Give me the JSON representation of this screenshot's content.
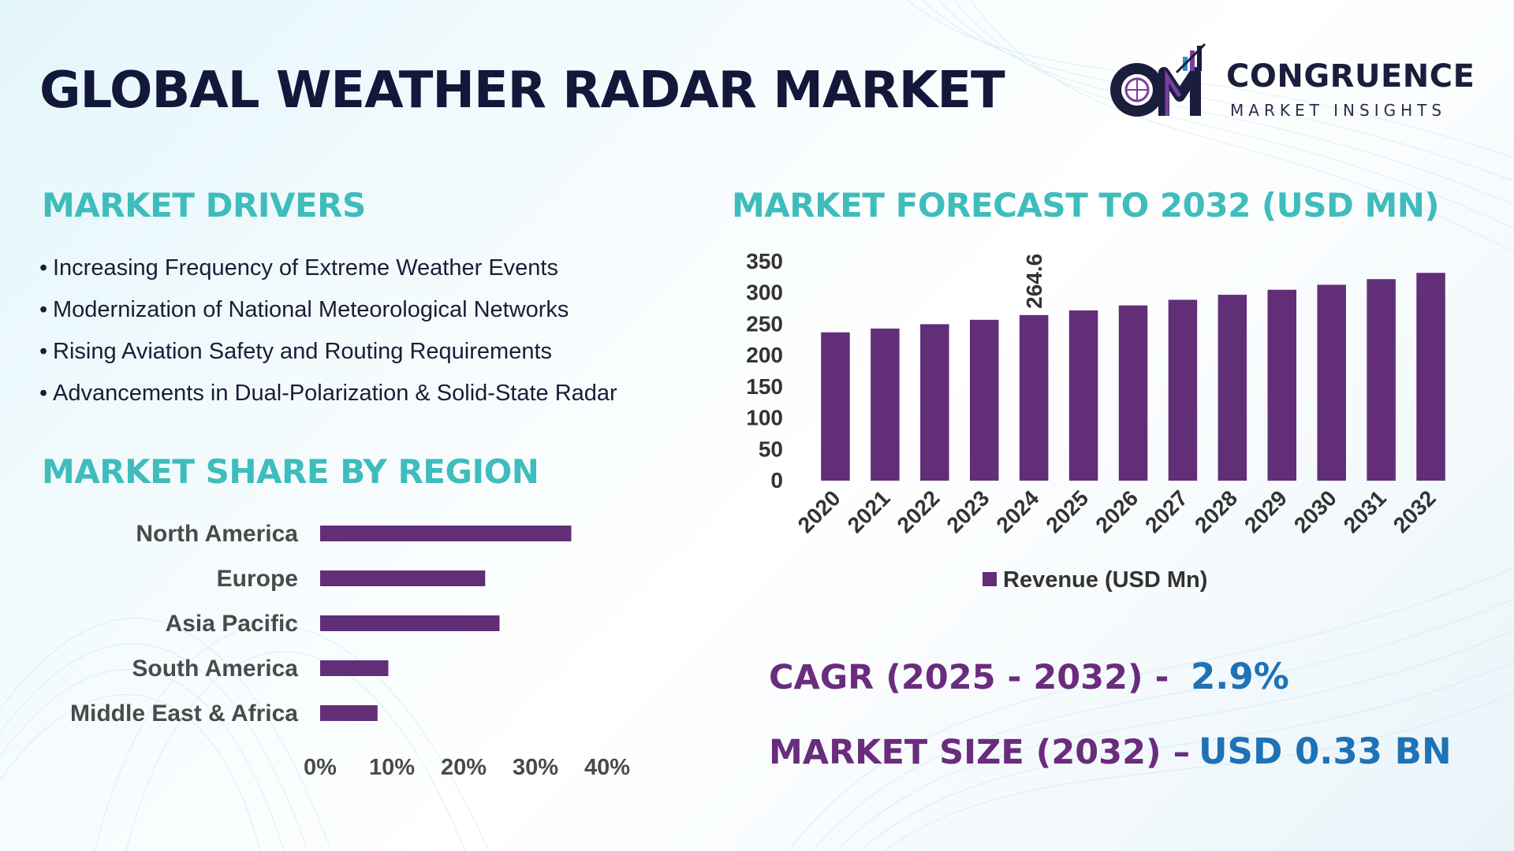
{
  "title": "GLOBAL WEATHER RADAR MARKET",
  "logo": {
    "initials": "CM",
    "name": "CONGRUENCE",
    "tagline": "MARKET INSIGHTS"
  },
  "drivers": {
    "title": "MARKET DRIVERS",
    "bullet": "•",
    "items": [
      "Increasing Frequency of Extreme Weather Events",
      "Modernization of National Meteorological Networks",
      "Rising Aviation Safety and Routing Requirements",
      "Advancements in Dual-Polarization & Solid-State Radar"
    ]
  },
  "region": {
    "title": "MARKET SHARE BY REGION"
  },
  "forecast": {
    "title": "MARKET FORECAST TO 2032 (USD MN)"
  },
  "kpis": {
    "cagr_label": "CAGR (2025 - 2032) -",
    "cagr_value": "2.9%",
    "size_label": "MARKET SIZE (2032) –",
    "size_value": "USD 0.33 BN"
  },
  "colors": {
    "bar": "#612e77",
    "teal": "#3fbcbc",
    "navy": "#13183a",
    "blue": "#1e72b5",
    "purple": "#6a2c7d"
  },
  "chart_data": [
    {
      "type": "bar",
      "title": "MARKET FORECAST TO 2032 (USD MN)",
      "categories": [
        "2020",
        "2021",
        "2022",
        "2023",
        "2024",
        "2025",
        "2026",
        "2027",
        "2028",
        "2029",
        "2030",
        "2031",
        "2032"
      ],
      "series": [
        {
          "name": "Revenue (USD Mn)",
          "values": [
            237,
            243,
            250,
            257,
            264.6,
            272,
            280,
            289,
            297,
            305,
            313,
            322,
            332
          ]
        }
      ],
      "data_labels": {
        "2024": "264.6"
      },
      "yticks": [
        "0",
        "50",
        "100",
        "150",
        "200",
        "250",
        "300",
        "350"
      ],
      "ylim": [
        0,
        350
      ],
      "legend": "bottom",
      "legend_label": "Revenue (USD Mn)"
    },
    {
      "type": "bar",
      "orientation": "horizontal",
      "title": "MARKET SHARE BY REGION",
      "categories": [
        "North America",
        "Europe",
        "Asia Pacific",
        "South America",
        "Middle East & Africa"
      ],
      "values": [
        35,
        23,
        25,
        9.5,
        8
      ],
      "xticks": [
        "0%",
        "10%",
        "20%",
        "30%",
        "40%"
      ],
      "xlim": [
        0,
        40
      ]
    }
  ]
}
